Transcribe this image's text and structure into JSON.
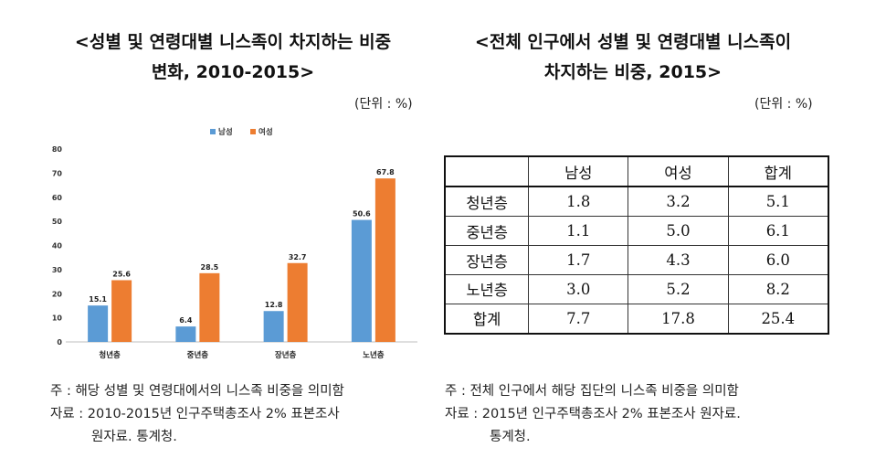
{
  "left": {
    "title_line1": "<성별 및 연령대별 니스족이 차지하는 비중",
    "title_line2": "변화, 2010-2015>",
    "unit": "(단위 : %)",
    "note1": "주 : 해당 성별 및 연령대에서의 니스족 비중을 의미함",
    "note2": "자료 : 2010-2015년 인구주택총조사 2% 표본조사",
    "note3": "원자료. 통계청."
  },
  "right": {
    "title_line1": "<전체 인구에서 성별 및 연령대별 니스족이",
    "title_line2": "차지하는 비중, 2015>",
    "unit": "(단위 : %)",
    "note1": "주 : 전체 인구에서 해당 집단의 니스족 비중을 의미함",
    "note2": "자료 : 2015년 인구주택총조사 2% 표본조사 원자료.",
    "note3": "통계청."
  },
  "chart_data": [
    {
      "type": "bar",
      "categories": [
        "청년층",
        "중년층",
        "장년층",
        "노년층"
      ],
      "series": [
        {
          "name": "남성",
          "values": [
            15.1,
            6.4,
            12.8,
            50.6
          ],
          "color": "#5b9bd5"
        },
        {
          "name": "여성",
          "values": [
            25.6,
            28.5,
            32.7,
            67.8
          ],
          "color": "#ed7d31"
        }
      ],
      "ylim": [
        0,
        80
      ],
      "yticks": [
        0,
        10,
        20,
        30,
        40,
        50,
        60,
        70,
        80
      ],
      "grid": false,
      "legend": "top-center",
      "title": "<성별 및 연령대별 니스족이 차지하는 비중 변화, 2010-2015>",
      "unit": "(단위 : %)"
    },
    {
      "type": "table",
      "title": "<전체 인구에서 성별 및 연령대별 니스족이 차지하는 비중, 2015>",
      "unit": "(단위 : %)",
      "columns": [
        "",
        "남성",
        "여성",
        "합계"
      ],
      "rows": [
        [
          "청년층",
          "1.8",
          "3.2",
          "5.1"
        ],
        [
          "중년층",
          "1.1",
          "5.0",
          "6.1"
        ],
        [
          "장년층",
          "1.7",
          "4.3",
          "6.0"
        ],
        [
          "노년층",
          "3.0",
          "5.2",
          "8.2"
        ],
        [
          "합계",
          "7.7",
          "17.8",
          "25.4"
        ]
      ]
    }
  ]
}
